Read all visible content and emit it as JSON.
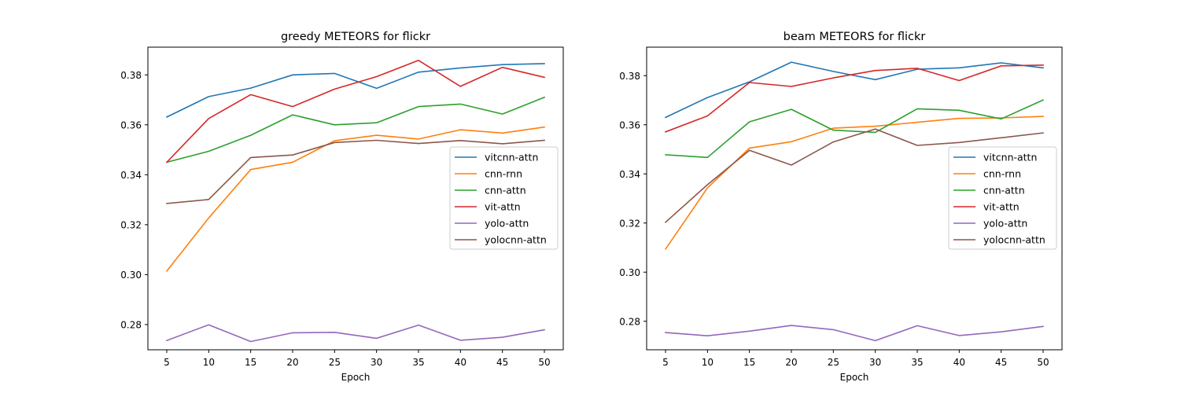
{
  "chart_data": [
    {
      "type": "line",
      "title": "greedy METEORS for flickr",
      "xlabel": "Epoch",
      "ylabel": "",
      "x": [
        5,
        10,
        15,
        20,
        25,
        30,
        35,
        40,
        45,
        50
      ],
      "xticks": [
        "5",
        "10",
        "15",
        "20",
        "25",
        "30",
        "35",
        "40",
        "45",
        "50"
      ],
      "yticks": [
        "0.28",
        "0.30",
        "0.32",
        "0.34",
        "0.36",
        "0.38"
      ],
      "ytick_values": [
        0.28,
        0.3,
        0.32,
        0.34,
        0.36,
        0.38
      ],
      "xlim": [
        2.75,
        52.25
      ],
      "ylim": [
        0.2699,
        0.3911
      ],
      "legend": "center-right",
      "grid": false,
      "series": [
        {
          "name": "vitcnn-attn",
          "color": "#1f77b4",
          "values": [
            0.3631,
            0.3713,
            0.3747,
            0.38,
            0.3806,
            0.3746,
            0.3811,
            0.3828,
            0.3841,
            0.3845
          ]
        },
        {
          "name": "cnn-rnn",
          "color": "#ff7f0e",
          "values": [
            0.3014,
            0.3227,
            0.3421,
            0.345,
            0.3536,
            0.3558,
            0.3543,
            0.358,
            0.3567,
            0.3591
          ]
        },
        {
          "name": "cnn-attn",
          "color": "#2ca02c",
          "values": [
            0.345,
            0.3494,
            0.3558,
            0.364,
            0.36,
            0.3608,
            0.3673,
            0.3683,
            0.3643,
            0.371
          ]
        },
        {
          "name": "vit-attn",
          "color": "#d62728",
          "values": [
            0.345,
            0.3625,
            0.3721,
            0.3673,
            0.3743,
            0.3793,
            0.3858,
            0.3754,
            0.383,
            0.379
          ]
        },
        {
          "name": "yolo-attn",
          "color": "#9467bd",
          "values": [
            0.2736,
            0.2799,
            0.2732,
            0.2767,
            0.2769,
            0.2745,
            0.2798,
            0.2737,
            0.2749,
            0.2779
          ]
        },
        {
          "name": "yolocnn-attn",
          "color": "#8c564b",
          "values": [
            0.3285,
            0.3301,
            0.3469,
            0.3479,
            0.3529,
            0.3538,
            0.3525,
            0.3537,
            0.3524,
            0.3538
          ]
        }
      ]
    },
    {
      "type": "line",
      "title": "beam METEORS for flickr",
      "xlabel": "Epoch",
      "ylabel": "",
      "x": [
        5,
        10,
        15,
        20,
        25,
        30,
        35,
        40,
        45,
        50
      ],
      "xticks": [
        "5",
        "10",
        "15",
        "20",
        "25",
        "30",
        "35",
        "40",
        "45",
        "50"
      ],
      "yticks": [
        "0.28",
        "0.30",
        "0.32",
        "0.34",
        "0.36",
        "0.38"
      ],
      "ytick_values": [
        0.28,
        0.3,
        0.32,
        0.34,
        0.36,
        0.38
      ],
      "xlim": [
        2.75,
        52.25
      ],
      "ylim": [
        0.2684,
        0.3916
      ],
      "legend": "center-right",
      "grid": false,
      "series": [
        {
          "name": "vitcnn-attn",
          "color": "#1f77b4",
          "values": [
            0.363,
            0.3711,
            0.3775,
            0.3855,
            0.3817,
            0.3784,
            0.3826,
            0.3832,
            0.3852,
            0.3832
          ]
        },
        {
          "name": "cnn-rnn",
          "color": "#ff7f0e",
          "values": [
            0.3094,
            0.3343,
            0.3505,
            0.3531,
            0.3586,
            0.3594,
            0.361,
            0.3626,
            0.3628,
            0.3634
          ]
        },
        {
          "name": "cnn-attn",
          "color": "#2ca02c",
          "values": [
            0.3478,
            0.3467,
            0.3612,
            0.3663,
            0.3578,
            0.3569,
            0.3665,
            0.3659,
            0.3624,
            0.3701
          ]
        },
        {
          "name": "vit-attn",
          "color": "#d62728",
          "values": [
            0.3571,
            0.3636,
            0.3772,
            0.3756,
            0.3791,
            0.3821,
            0.383,
            0.378,
            0.384,
            0.3843
          ]
        },
        {
          "name": "yolo-attn",
          "color": "#9467bd",
          "values": [
            0.2754,
            0.2741,
            0.276,
            0.2783,
            0.2766,
            0.2721,
            0.2782,
            0.2742,
            0.2757,
            0.2779
          ]
        },
        {
          "name": "yolocnn-attn",
          "color": "#8c564b",
          "values": [
            0.3203,
            0.3356,
            0.3496,
            0.3436,
            0.353,
            0.3583,
            0.3516,
            0.3528,
            0.3547,
            0.3567
          ]
        }
      ]
    }
  ]
}
